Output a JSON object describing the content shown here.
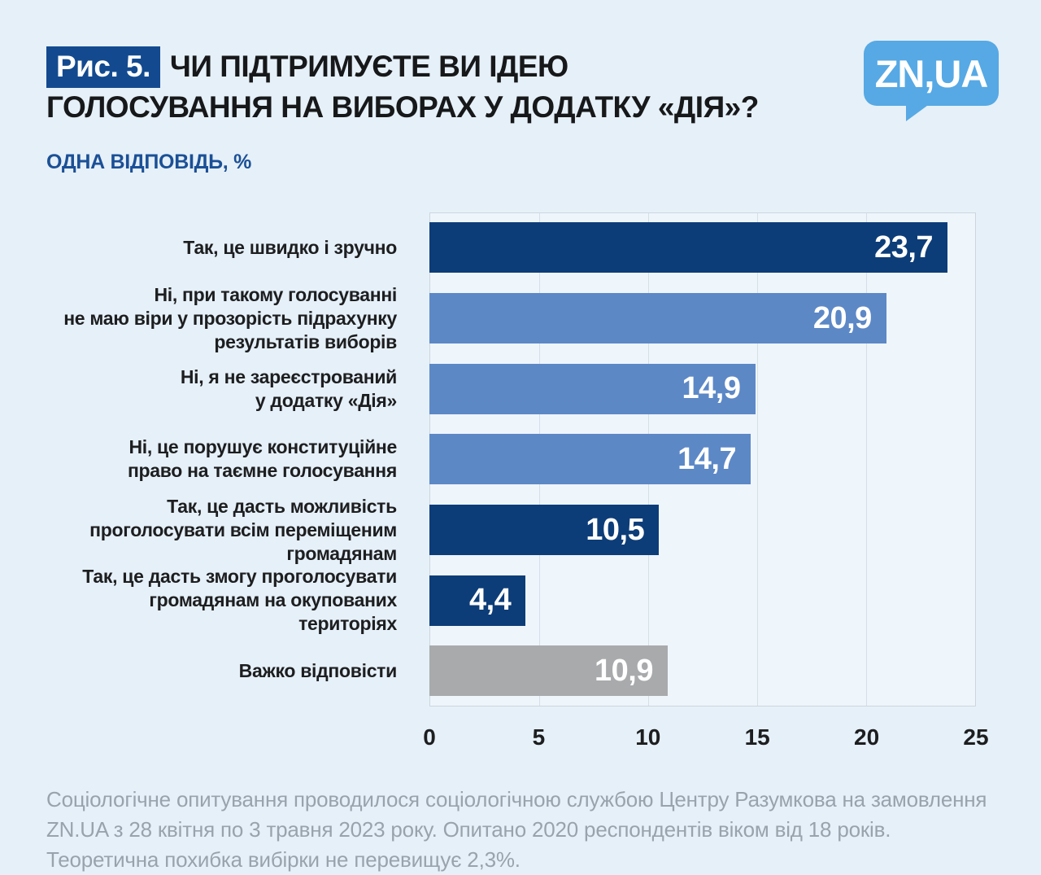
{
  "page": {
    "figure_label": "Рис. 5.",
    "title": "ЧИ ПІДТРИМУЄТЕ ВИ ІДЕЮ\nГОЛОСУВАННЯ НА ВИБОРАХ У ДОДАТКУ «ДІЯ»?",
    "subtitle": "ОДНА ВІДПОВІДЬ, %",
    "logo_text": "ZN,UA",
    "footnote": "Соціологічне опитування проводилося соціологічною  службою Центру Разумкова на замовлення\nZN.UA з 28 квітня по 3 травня 2023 року. Опитано 2020 респондентів віком від 18 років.\nТеоретична похибка вибірки не перевищує 2,3%."
  },
  "colors": {
    "dark_blue": "#0d3d78",
    "medium_blue": "#5c88c6",
    "gray": "#a8aaac",
    "page_background": "#e6f0f8",
    "plot_background": "#eef5fb",
    "figure_badge": "#134a8f",
    "subtitle_blue": "#1b5096",
    "logo_blue": "#56a9e4",
    "footnote_gray": "#99a3ad"
  },
  "chart_data": {
    "type": "bar",
    "orientation": "horizontal",
    "title": "ЧИ ПІДТРИМУЄТЕ ВИ ІДЕЮ ГОЛОСУВАННЯ НА ВИБОРАХ У ДОДАТКУ «ДІЯ»?",
    "subtitle": "ОДНА ВІДПОВІДЬ, %",
    "unit": "%",
    "xlim": [
      0,
      25
    ],
    "x_ticks": [
      "0",
      "5",
      "10",
      "15",
      "20",
      "25"
    ],
    "grid": true,
    "rows": [
      {
        "label": "Так, це швидко і зручно",
        "value": 23.7,
        "display": "23,7",
        "color": "dark_blue"
      },
      {
        "label": "Ні, при такому голосуванні\nне маю віри у прозорість підрахунку\nрезультатів виборів",
        "value": 20.9,
        "display": "20,9",
        "color": "medium_blue"
      },
      {
        "label": "Ні, я не зареєстрований\nу додатку «Дія»",
        "value": 14.9,
        "display": "14,9",
        "color": "medium_blue"
      },
      {
        "label": "Ні, це порушує конституційне\nправо на таємне голосування",
        "value": 14.7,
        "display": "14,7",
        "color": "medium_blue"
      },
      {
        "label": "Так, це дасть можливість\nпроголосувати всім переміщеним\nгромадянам",
        "value": 10.5,
        "display": "10,5",
        "color": "dark_blue"
      },
      {
        "label": "Так, це дасть змогу проголосувати\nгромадянам на окупованих територіях",
        "value": 4.4,
        "display": "4,4",
        "color": "dark_blue"
      },
      {
        "label": "Важко відповісти",
        "value": 10.9,
        "display": "10,9",
        "color": "gray"
      }
    ]
  }
}
